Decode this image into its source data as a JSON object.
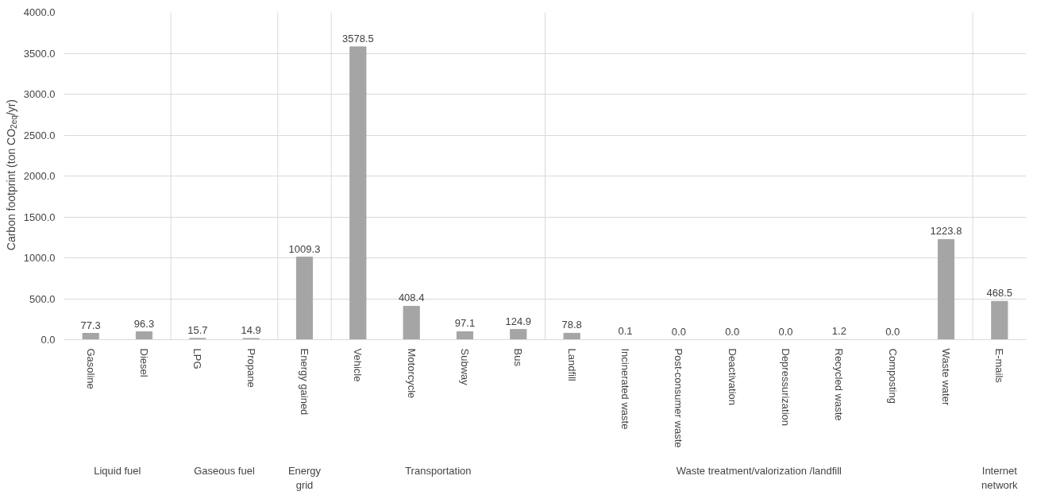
{
  "chart_data": {
    "type": "bar",
    "ylabel": "Carbon footprint (ton CO$_{2eq}$/yr)",
    "categories": [
      "Gasoline",
      "Diesel",
      "LPG",
      "Propane",
      "Energy gained",
      "Vehicle",
      "Motorcycle",
      "Subway",
      "Bus",
      "Landfill",
      "Incinerated waste",
      "Post-consumer waste",
      "Deactivation",
      "Depressurization",
      "Recycled waste",
      "Composting",
      "Waste water",
      "E-mails"
    ],
    "values": [
      77.3,
      96.3,
      15.7,
      14.9,
      1009.3,
      3578.5,
      408.4,
      97.1,
      124.9,
      78.8,
      0.1,
      0.0,
      0.0,
      0.0,
      1.2,
      0.0,
      1223.8,
      468.5
    ],
    "color": "#a5a5a5",
    "value_labels": [
      "77.3",
      "96.3",
      "15.7",
      "14.9",
      "1009.3",
      "3578.5",
      "408.4",
      "97.1",
      "124.9",
      "78.8",
      "0.1",
      "0.0",
      "0.0",
      "0.0",
      "1.2",
      "0.0",
      "1223.8",
      "468.5"
    ],
    "ylim": [
      0,
      4000
    ],
    "yticks": [
      {
        "value": 0,
        "label": "0.0"
      },
      {
        "value": 500,
        "label": "500.0"
      },
      {
        "value": 1000,
        "label": "1000.0"
      },
      {
        "value": 1500,
        "label": "1500.0"
      },
      {
        "value": 2000,
        "label": "2000.0"
      },
      {
        "value": 2500,
        "label": "2500.0"
      },
      {
        "value": 3000,
        "label": "3000.0"
      },
      {
        "value": 3500,
        "label": "3500.0"
      },
      {
        "value": 4000,
        "label": "4000.0"
      }
    ],
    "grid": "y",
    "annotations": [
      "Liquid fuel",
      "Gaseous fuel",
      "Energy grid",
      "Transportation",
      "Waste treatment/valorization /landfill",
      "Internet network"
    ]
  }
}
